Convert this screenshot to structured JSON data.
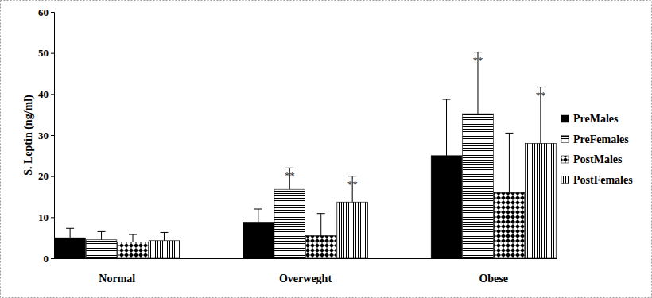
{
  "chart_data": {
    "type": "bar",
    "y_label": "S. Leptin (ng/ml)",
    "categories": [
      "Normal",
      "Overweght",
      "Obese"
    ],
    "series": [
      {
        "name": "PreMales",
        "color": "#000000",
        "values": [
          5.0,
          8.8,
          25.0
        ],
        "errors": [
          2.3,
          3.2,
          13.7
        ]
      },
      {
        "name": "PreFemales",
        "color": "#000000",
        "values": [
          4.5,
          16.8,
          35.2
        ],
        "errors": [
          2.0,
          5.2,
          15.0
        ],
        "annotations": [
          null,
          "**",
          "**"
        ]
      },
      {
        "name": "PostMales",
        "color": "#000000",
        "values": [
          4.0,
          5.5,
          16.0
        ],
        "errors": [
          1.8,
          5.4,
          14.5
        ]
      },
      {
        "name": "PostFemales",
        "color": "#000000",
        "values": [
          4.3,
          13.7,
          28.0
        ],
        "errors": [
          2.0,
          6.3,
          13.7
        ],
        "annotations": [
          null,
          "**",
          "**"
        ]
      }
    ],
    "ylim": [
      0,
      60
    ],
    "yticks": [
      0,
      10,
      20,
      30,
      40,
      50,
      60
    ],
    "legend": "right",
    "grid": false
  }
}
